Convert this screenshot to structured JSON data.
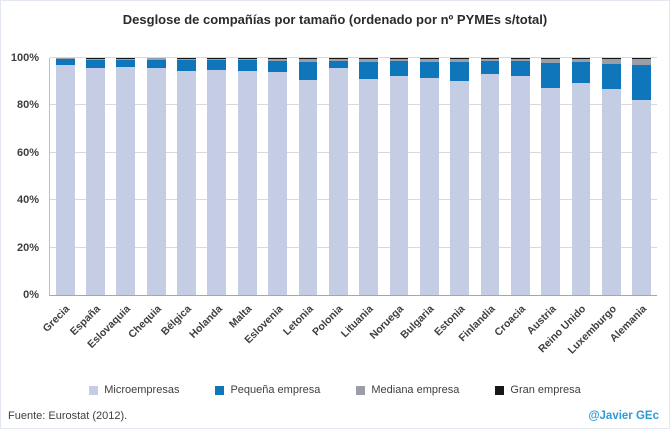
{
  "title": "Desglose de compañías por tamaño (ordenado por nº PYMEs s/total)",
  "footer": {
    "source": "Fuente: Eurostat (2012).",
    "credit": "@Javier GEc"
  },
  "colors": {
    "micro": "#c5cde4",
    "pequena": "#0f76bc",
    "mediana": "#9a9ea6",
    "gran": "#171717",
    "credit_text": "#2e9bd6",
    "grid": "#d9d9d9"
  },
  "chart_data": {
    "type": "bar",
    "stacked": true,
    "title": "Desglose de compañías por tamaño (ordenado por nº PYMEs s/total)",
    "xlabel": "",
    "ylabel": "",
    "ylim": [
      0,
      100
    ],
    "yticks": [
      0,
      20,
      40,
      60,
      80,
      100
    ],
    "ytick_suffix": "%",
    "grid": true,
    "legend_position": "bottom",
    "categories": [
      "Grecia",
      "España",
      "Eslovaquia",
      "Chequia",
      "Bélgica",
      "Holanda",
      "Malta",
      "Eslovenia",
      "Letonia",
      "Polonia",
      "Lituania",
      "Noruega",
      "Bulgaria",
      "Estonia",
      "Finlandia",
      "Croacia",
      "Austria",
      "Reino Unido",
      "Luxemburgo",
      "Alemania"
    ],
    "series": [
      {
        "name": "Microempresas",
        "color_key": "micro",
        "values": [
          96.9,
          95.7,
          96.2,
          95.9,
          94.6,
          95.0,
          94.4,
          94.2,
          90.9,
          95.8,
          91.3,
          92.4,
          91.4,
          90.2,
          93.1,
          92.3,
          87.5,
          89.5,
          87.0,
          82.2
        ]
      },
      {
        "name": "Pequeña empresa",
        "color_key": "pequena",
        "values": [
          2.6,
          3.5,
          2.9,
          3.2,
          4.5,
          4.1,
          4.6,
          4.7,
          7.4,
          3.1,
          7.0,
          6.2,
          7.0,
          8.0,
          5.6,
          6.3,
          10.3,
          8.7,
          10.6,
          14.9
        ]
      },
      {
        "name": "Mediana empresa",
        "color_key": "mediana",
        "values": [
          0.4,
          0.6,
          0.7,
          0.7,
          0.7,
          0.7,
          0.8,
          0.9,
          1.4,
          0.9,
          1.4,
          1.1,
          1.3,
          1.5,
          1.0,
          1.1,
          1.8,
          1.5,
          2.0,
          2.4
        ]
      },
      {
        "name": "Gran empresa",
        "color_key": "gran",
        "values": [
          0.1,
          0.2,
          0.2,
          0.2,
          0.2,
          0.2,
          0.2,
          0.2,
          0.3,
          0.2,
          0.3,
          0.3,
          0.3,
          0.3,
          0.3,
          0.3,
          0.4,
          0.3,
          0.4,
          0.5
        ]
      }
    ]
  }
}
